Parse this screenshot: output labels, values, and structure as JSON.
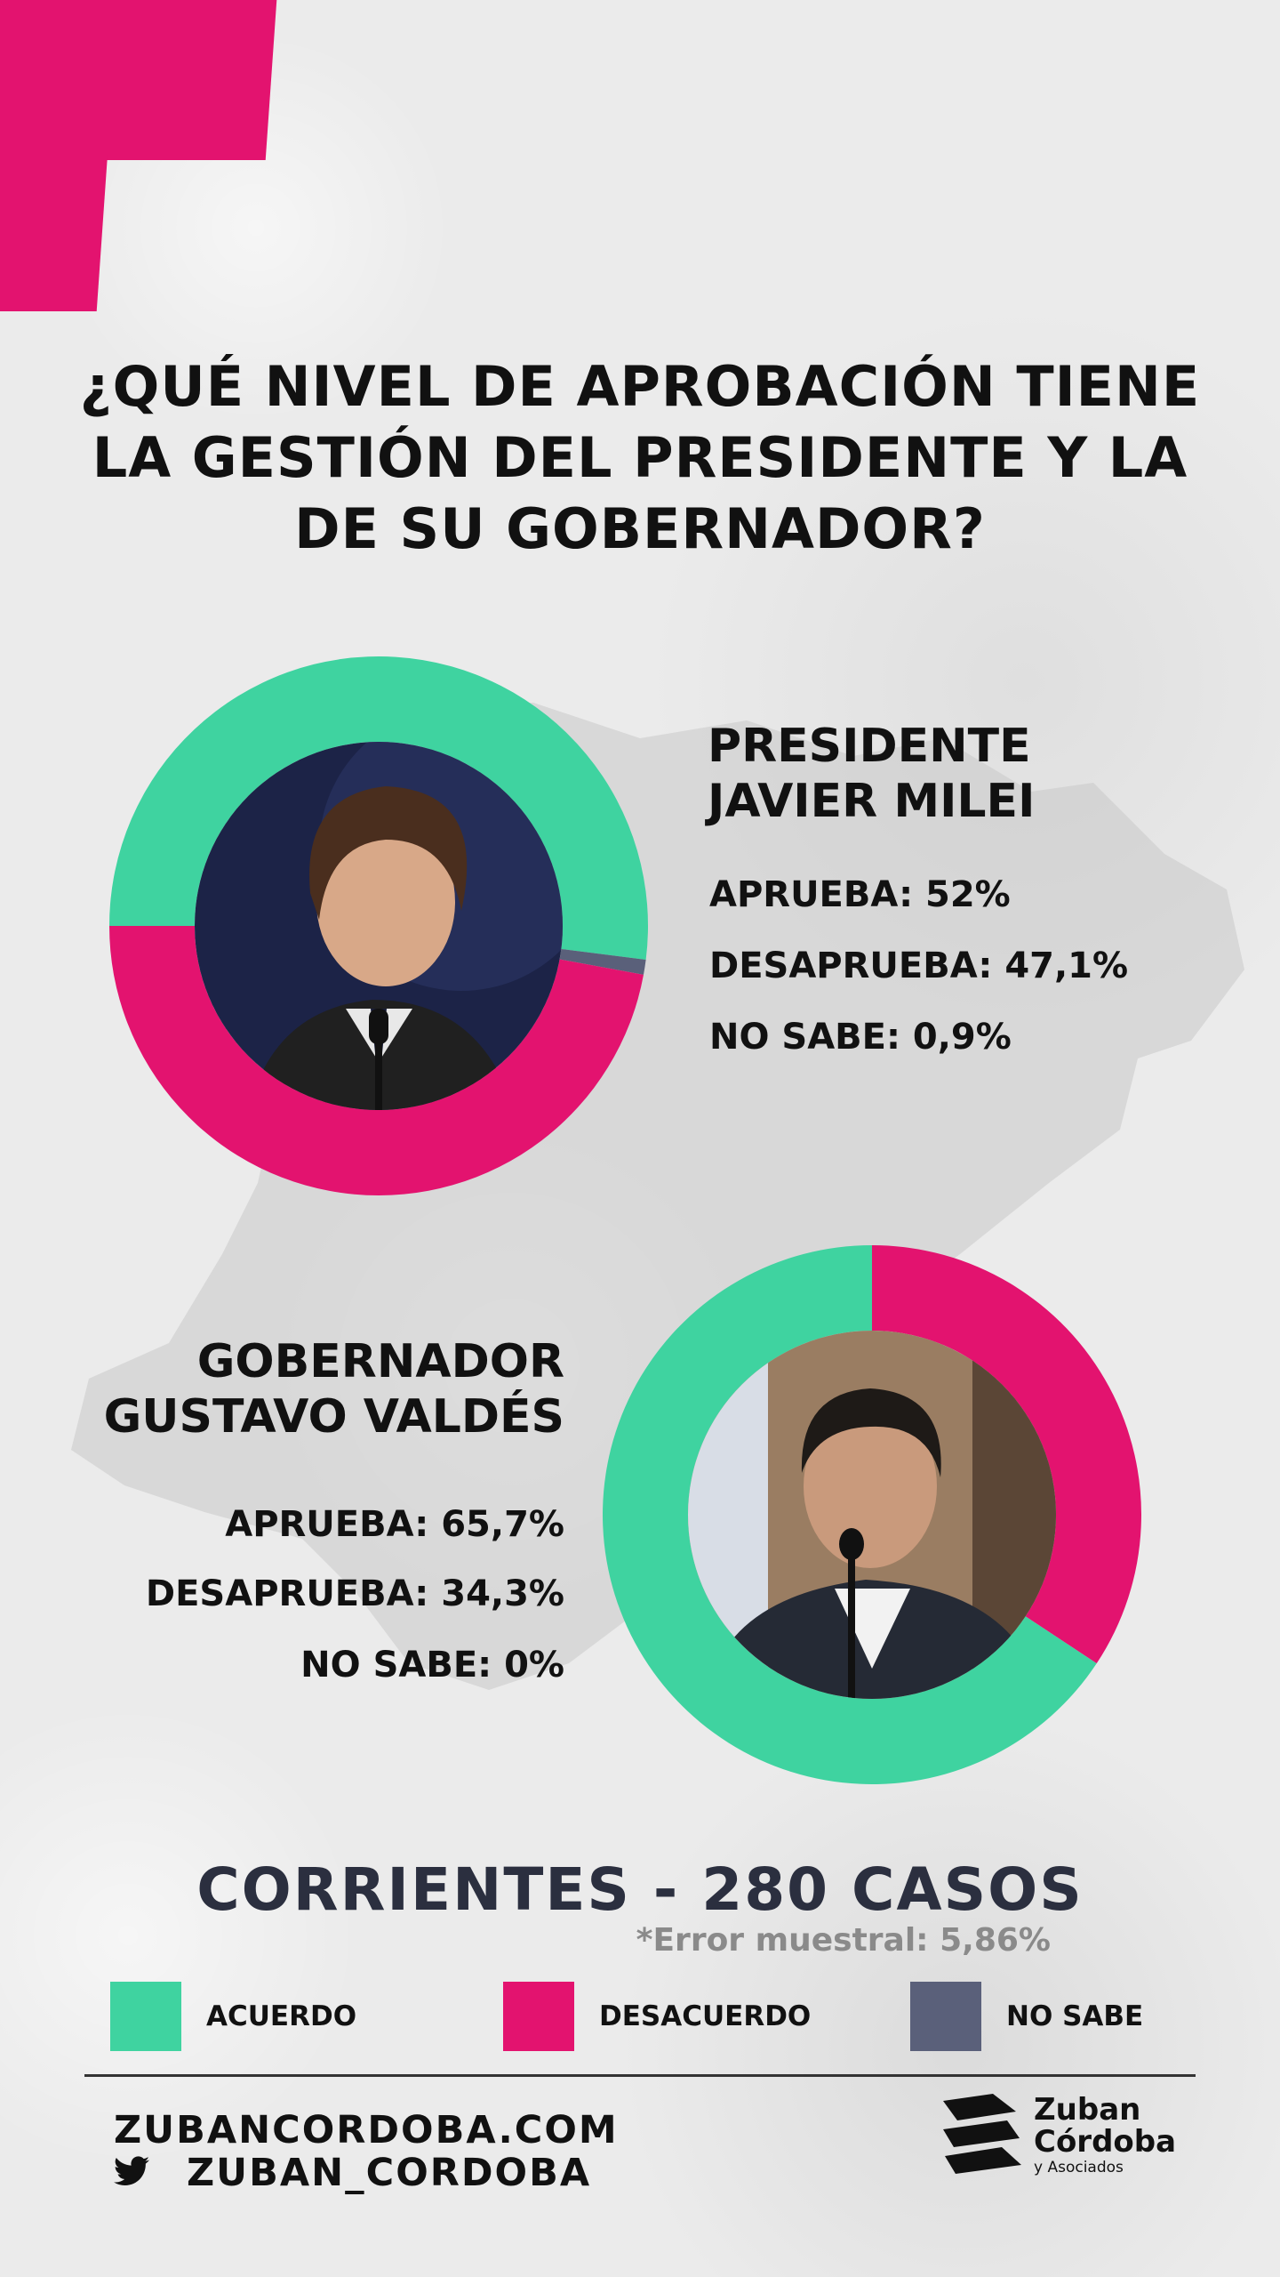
{
  "title": "¿QUÉ NIVEL DE APROBACIÓN TIENE LA GESTIÓN DEL PRESIDENTE Y LA DE SU GOBERNADOR?",
  "colors": {
    "acuerdo": "#3fd3a0",
    "desacuerdo": "#e3136f",
    "no_sabe": "#5a607a",
    "accent": "#e3136f"
  },
  "chart_data": [
    {
      "type": "pie",
      "title": "PRESIDENTE JAVIER MILEI",
      "categories": [
        "APRUEBA",
        "DESAPRUEBA",
        "NO SABE"
      ],
      "values": [
        52,
        47.1,
        0.9
      ],
      "unit": "%"
    },
    {
      "type": "pie",
      "title": "GOBERNADOR GUSTAVO VALDÉS",
      "categories": [
        "APRUEBA",
        "DESAPRUEBA",
        "NO SABE"
      ],
      "values": [
        65.7,
        34.3,
        0
      ],
      "unit": "%"
    }
  ],
  "president": {
    "name_line1": "PRESIDENTE",
    "name_line2": "JAVIER MILEI",
    "aprueba": "APRUEBA: 52%",
    "desaprueba": "DESAPRUEBA: 47,1%",
    "no_sabe": "NO SABE: 0,9%"
  },
  "governor": {
    "name_line1": "GOBERNADOR",
    "name_line2": "GUSTAVO VALDÉS",
    "aprueba": "APRUEBA: 65,7%",
    "desaprueba": "DESAPRUEBA: 34,3%",
    "no_sabe": "NO SABE: 0%"
  },
  "sample": {
    "title": "CORRIENTES - 280 CASOS",
    "error": "*Error muestral: 5,86%"
  },
  "legend": [
    {
      "label": "ACUERDO",
      "color": "#3fd3a0"
    },
    {
      "label": "DESACUERDO",
      "color": "#e3136f"
    },
    {
      "label": "NO SABE",
      "color": "#5a607a"
    }
  ],
  "footer": {
    "website": "ZUBANCORDOBA.COM",
    "twitter": "ZUBAN_CORDOBA",
    "twitter_icon": "twitter-bird-icon"
  },
  "logo": {
    "line1": "Zuban",
    "line2": "Córdoba",
    "line3": "y Asociados"
  }
}
